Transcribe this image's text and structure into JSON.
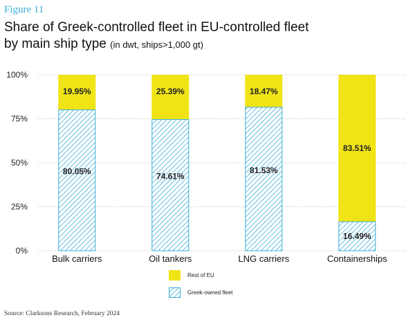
{
  "figure_label": "Figure 11",
  "title_main": "Share of Greek-controlled fleet in EU-controlled fleet",
  "title_line2": "by main ship type",
  "title_sub": "(in dwt, ships>1,000 gt)",
  "source": "Source: Clarksons Research, February 2024",
  "colors": {
    "rest_of_eu": "#f0e416",
    "greek": "#3aaed8",
    "accent": "#3aaed8"
  },
  "chart_data": {
    "type": "bar",
    "stacked": true,
    "categories": [
      "Bulk carriers",
      "Oil tankers",
      "LNG carriers",
      "Containerships"
    ],
    "series": [
      {
        "name": "Greek-owned fleet",
        "values": [
          80.05,
          74.61,
          81.53,
          16.49
        ],
        "labels": [
          "80.05%",
          "74.61%",
          "81.53%",
          "16.49%"
        ],
        "pattern": "hatched"
      },
      {
        "name": "Rest of EU",
        "values": [
          19.95,
          25.39,
          18.47,
          83.51
        ],
        "labels": [
          "19.95%",
          "25.39%",
          "18.47%",
          "83.51%"
        ],
        "pattern": "solid"
      }
    ],
    "ylim": [
      0,
      100
    ],
    "yticks": [
      0,
      25,
      50,
      75,
      100
    ],
    "ytick_labels": [
      "0%",
      "25%",
      "50%",
      "75%",
      "100%"
    ],
    "grid": true,
    "legend_position": "bottom-center"
  }
}
